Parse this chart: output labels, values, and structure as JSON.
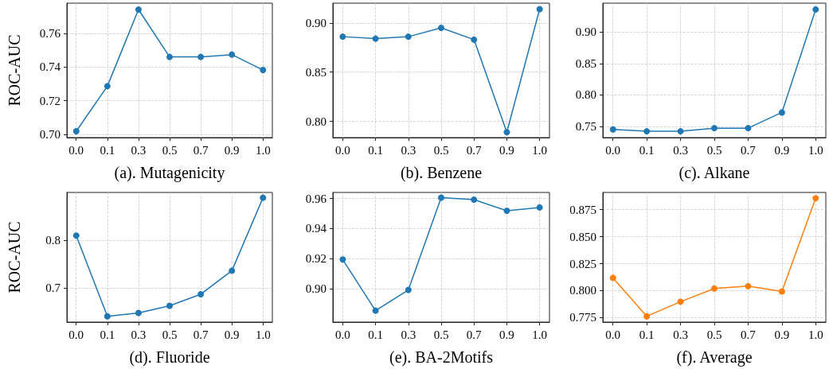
{
  "chart_data": [
    {
      "type": "line",
      "xlabel": "(a). Mutagenicity",
      "ylabel": "ROC-AUC",
      "categories": [
        "0.0",
        "0.1",
        "0.3",
        "0.5",
        "0.7",
        "0.9",
        "1.0"
      ],
      "series": [
        {
          "color": "#1f77b4",
          "values": [
            0.7018,
            0.7286,
            0.7742,
            0.746,
            0.746,
            0.7474,
            0.7382
          ]
        }
      ],
      "ylim": [
        0.698,
        0.778
      ],
      "yticks": [
        {
          "value": 0.7,
          "label": "0.70"
        },
        0.72,
        0.74,
        0.76
      ],
      "grid": true,
      "marker": "circle",
      "line_style": "solid"
    },
    {
      "type": "line",
      "xlabel": "(b). Benzene",
      "categories": [
        "0.0",
        "0.1",
        "0.3",
        "0.5",
        "0.7",
        "0.9",
        "1.0"
      ],
      "series": [
        {
          "color": "#1f77b4",
          "values": [
            0.886,
            0.884,
            0.886,
            0.895,
            0.883,
            0.789,
            0.914
          ]
        }
      ],
      "ylim": [
        0.7836,
        0.92
      ],
      "yticks": [
        {
          "value": 0.8,
          "label": "0.80"
        },
        0.85,
        {
          "value": 0.9,
          "label": "0.90"
        }
      ],
      "grid": true,
      "marker": "circle",
      "line_style": "solid"
    },
    {
      "type": "line",
      "xlabel": "(c). Alkane",
      "categories": [
        "0.0",
        "0.1",
        "0.3",
        "0.5",
        "0.7",
        "0.9",
        "1.0"
      ],
      "series": [
        {
          "color": "#1f77b4",
          "values": [
            0.745,
            0.742,
            0.742,
            0.747,
            0.747,
            0.772,
            0.936
          ]
        }
      ],
      "ylim": [
        0.732,
        0.946
      ],
      "yticks": [
        0.75,
        {
          "value": 0.8,
          "label": "0.80"
        },
        0.85,
        {
          "value": 0.9,
          "label": "0.90"
        }
      ],
      "grid": true,
      "marker": "circle",
      "line_style": "solid"
    },
    {
      "type": "line",
      "xlabel": "(d). Fluoride",
      "ylabel": "ROC-AUC",
      "categories": [
        "0.0",
        "0.1",
        "0.3",
        "0.5",
        "0.7",
        "0.9",
        "1.0"
      ],
      "series": [
        {
          "color": "#1f77b4",
          "values": [
            0.809,
            0.641,
            0.648,
            0.663,
            0.687,
            0.736,
            0.888
          ]
        }
      ],
      "ylim": [
        0.629,
        0.899
      ],
      "yticks": [
        0.7,
        0.8
      ],
      "grid": true,
      "marker": "circle",
      "line_style": "solid"
    },
    {
      "type": "line",
      "xlabel": "(e). BA-2Motifs",
      "categories": [
        "0.0",
        "0.1",
        "0.3",
        "0.5",
        "0.7",
        "0.9",
        "1.0"
      ],
      "series": [
        {
          "color": "#1f77b4",
          "values": [
            0.9194,
            0.8854,
            0.8992,
            0.9606,
            0.9592,
            0.9518,
            0.954
          ]
        }
      ],
      "ylim": [
        0.8778,
        0.964
      ],
      "yticks": [
        {
          "value": 0.9,
          "label": "0.90"
        },
        0.92,
        0.94,
        0.96
      ],
      "grid": true,
      "marker": "circle",
      "line_style": "solid"
    },
    {
      "type": "line",
      "xlabel": "(f). Average",
      "categories": [
        "0.0",
        "0.1",
        "0.3",
        "0.5",
        "0.7",
        "0.9",
        "1.0"
      ],
      "series": [
        {
          "color": "#ff7f0e",
          "values": [
            0.8118,
            0.7762,
            0.7897,
            0.802,
            0.8041,
            0.7992,
            0.8857
          ]
        }
      ],
      "ylim": [
        0.7708,
        0.891
      ],
      "yticks": [
        0.775,
        {
          "value": 0.8,
          "label": "0.800"
        },
        0.825,
        {
          "value": 0.85,
          "label": "0.850"
        },
        0.875
      ],
      "grid": true,
      "marker": "circle",
      "line_style": "solid"
    }
  ]
}
